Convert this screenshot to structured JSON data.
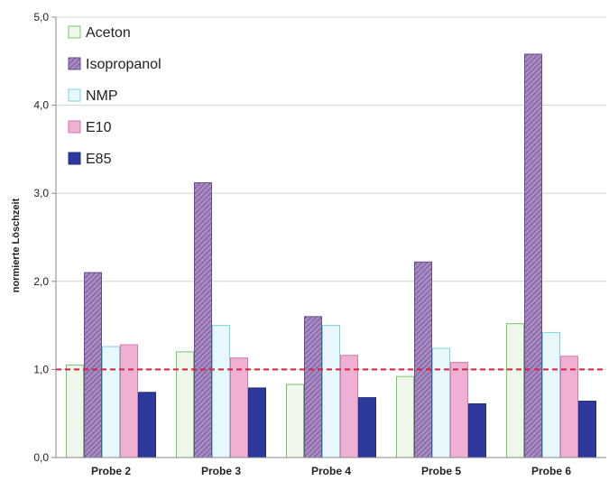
{
  "chart_data": {
    "type": "bar",
    "title": "",
    "xlabel": "",
    "ylabel": "normierte Löschzeit",
    "ylim": [
      0,
      5
    ],
    "yticks": [
      "0,0",
      "1,0",
      "2,0",
      "3,0",
      "4,0",
      "5,0"
    ],
    "grid": "horizontal",
    "legend_position": "top-left",
    "categories": [
      "Probe 2",
      "Probe 3",
      "Probe 4",
      "Probe 5",
      "Probe 6"
    ],
    "reference_line": 1.0,
    "reference_line_color": "#d62040",
    "series": [
      {
        "name": "Aceton",
        "values": [
          1.05,
          1.2,
          0.83,
          0.92,
          1.52
        ],
        "fill": "#eef7ea",
        "stroke": "#7dc36e",
        "pattern": "solid"
      },
      {
        "name": "Isopropanol",
        "values": [
          2.1,
          3.12,
          1.6,
          2.22,
          4.58
        ],
        "fill": "#a98bc4",
        "stroke": "#6b4c8c",
        "pattern": "hatched"
      },
      {
        "name": "NMP",
        "values": [
          1.26,
          1.5,
          1.5,
          1.24,
          1.42
        ],
        "fill": "#e6f8fb",
        "stroke": "#7fd3e3",
        "pattern": "solid"
      },
      {
        "name": "E10",
        "values": [
          1.28,
          1.13,
          1.16,
          1.08,
          1.15
        ],
        "fill": "#efb0d3",
        "stroke": "#d676ab",
        "pattern": "solid"
      },
      {
        "name": "E85",
        "values": [
          0.74,
          0.79,
          0.68,
          0.61,
          0.64
        ],
        "fill": "#2d3a9b",
        "stroke": "#222d7d",
        "pattern": "solid"
      }
    ]
  }
}
